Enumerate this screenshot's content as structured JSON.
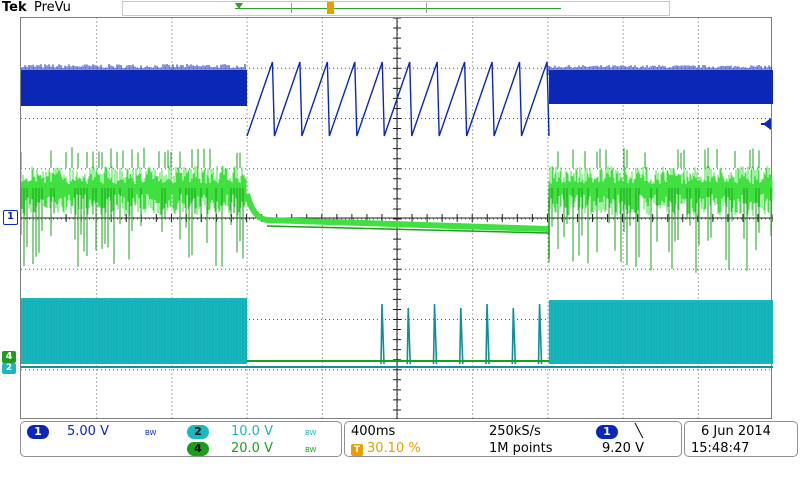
{
  "header": {
    "brand": "Tek",
    "mode": "PreVu"
  },
  "colors": {
    "ch1": "#0b27b8",
    "ch2": "#17b8c0",
    "ch4": "#1c9e1c",
    "ch4_light": "#3fe03f",
    "trigger": "#e8a000",
    "grid": "#222222"
  },
  "icons": {
    "trigger_marker": "trigger-position-icon",
    "ch1_level": "trigger-level-arrow-icon",
    "slope": "falling-edge-icon"
  },
  "markers": {
    "ch1_ground": "1",
    "ch4_ground": "4",
    "ch2_ground": "2"
  },
  "channels": {
    "ch1": {
      "badge": "1",
      "scale": "5.00 V",
      "bw": "BW"
    },
    "ch2": {
      "badge": "2",
      "scale": "10.0 V",
      "bw": "BW"
    },
    "ch4": {
      "badge": "4",
      "scale": "20.0 V",
      "bw": "BW"
    }
  },
  "timebase": {
    "scale": "400ms",
    "sample_rate": "250kS/s",
    "trigger_position": "30.10 %",
    "record_length": "1M points"
  },
  "trigger": {
    "source": "1",
    "slope_symbol": "╲",
    "level": "9.20 V"
  },
  "datetime": {
    "date": "6 Jun 2014",
    "time": "15:48:47"
  }
}
